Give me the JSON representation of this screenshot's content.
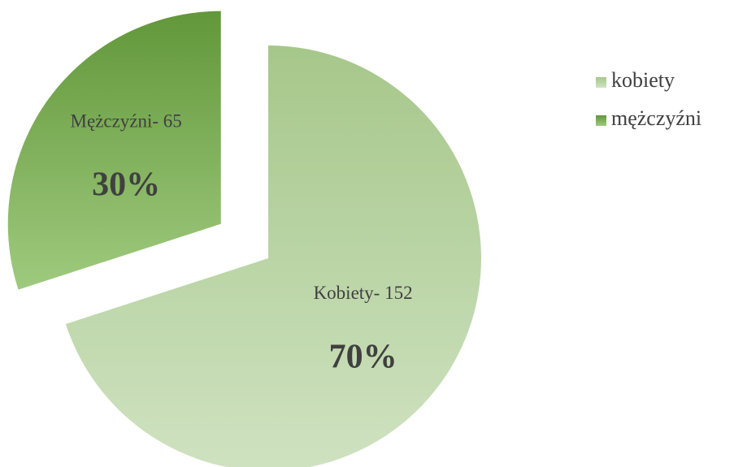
{
  "chart_data": {
    "type": "pie",
    "categories": [
      "kobiety",
      "mężczyźni"
    ],
    "values": [
      70,
      30
    ],
    "value_labels": [
      "70%",
      "30%"
    ],
    "slice_labels": [
      "Kobiety- 152",
      "Mężczyźni- 65"
    ],
    "colors": [
      [
        "#a6c78a",
        "#cfe2c1"
      ],
      [
        "#62973a",
        "#9fca7e"
      ]
    ],
    "exploded": [
      false,
      true
    ],
    "legend": "right"
  }
}
